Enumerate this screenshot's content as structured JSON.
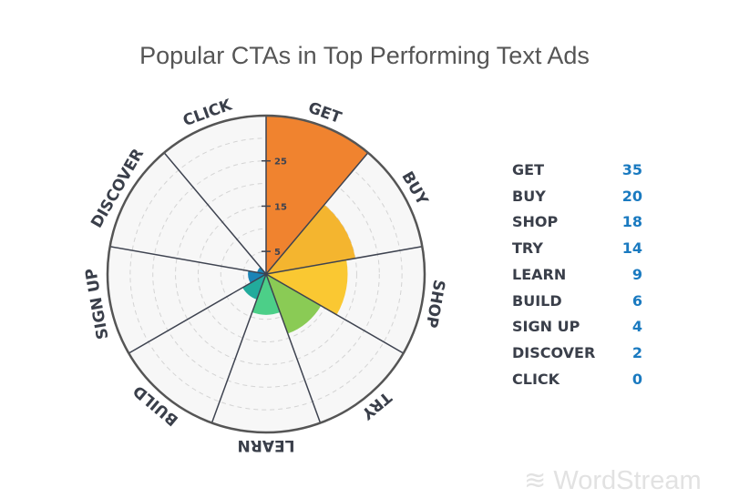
{
  "chart_data": {
    "type": "polar-area",
    "title": "Popular CTAs in Top Performing Text Ads",
    "categories": [
      "GET",
      "BUY",
      "SHOP",
      "TRY",
      "LEARN",
      "BUILD",
      "SIGN UP",
      "DISCOVER",
      "CLICK"
    ],
    "values": [
      35,
      20,
      18,
      14,
      9,
      6,
      4,
      2,
      0
    ],
    "colors": [
      "#f0832f",
      "#f4b52f",
      "#fac832",
      "#8acb55",
      "#4ccf88",
      "#22ab9c",
      "#1b84b6",
      "#1b84b6",
      "#1b84b6"
    ],
    "radial_ticks": [
      5,
      15,
      25
    ],
    "rlim": [
      0,
      35
    ],
    "grid": true,
    "legend": "right"
  },
  "brand": "WordStream"
}
